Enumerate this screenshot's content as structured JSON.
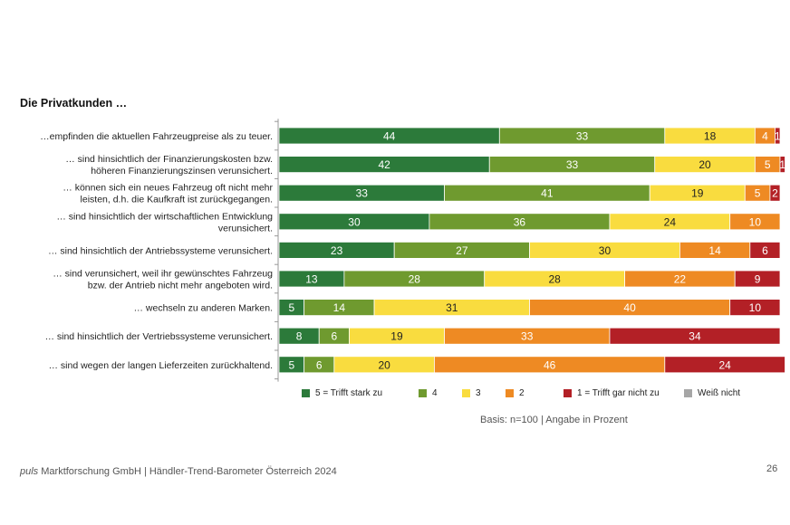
{
  "section_title": "Die Privatkunden …",
  "basis": "Basis: n=100 | Angabe in Prozent",
  "footer": {
    "brand": "puls",
    "text": " Marktforschung GmbH | Händler-Trend-Barometer Österreich 2024"
  },
  "page_number": "26",
  "colors": {
    "5": "#2c7a3a",
    "4": "#6f9a2f",
    "3": "#f9dc3f",
    "2": "#ee8a23",
    "1": "#b32026",
    "weiss_nicht": "#a6a6a6"
  },
  "chart_data": {
    "type": "bar",
    "orientation": "horizontal",
    "stacked": true,
    "xlim": [
      0,
      100
    ],
    "categories": [
      [
        "…empfinden die aktuellen Fahrzeugpreise als zu teuer."
      ],
      [
        "… sind hinsichtlich der Finanzierungskosten bzw.",
        "höheren Finanzierungszinsen verunsichert."
      ],
      [
        "… können sich ein neues Fahrzeug oft nicht mehr",
        "leisten, d.h. die Kaufkraft ist zurückgegangen."
      ],
      [
        "… sind hinsichtlich der wirtschaftlichen Entwicklung",
        "verunsichert."
      ],
      [
        "… sind hinsichtlich der Antriebssysteme verunsichert."
      ],
      [
        "… sind verunsichert, weil ihr gewünschtes Fahrzeug",
        "bzw. der Antrieb nicht mehr angeboten wird."
      ],
      [
        "… wechseln zu anderen Marken."
      ],
      [
        "… sind hinsichtlich der Vertriebssysteme verunsichert."
      ],
      [
        "… sind wegen der langen Lieferzeiten zurückhaltend."
      ]
    ],
    "series": [
      {
        "name": "5 = Trifft stark zu",
        "key": "5",
        "values": [
          44,
          42,
          33,
          30,
          23,
          13,
          5,
          8,
          5
        ]
      },
      {
        "name": "4",
        "key": "4",
        "values": [
          33,
          33,
          41,
          36,
          27,
          28,
          14,
          6,
          6
        ]
      },
      {
        "name": "3",
        "key": "3",
        "values": [
          18,
          20,
          19,
          24,
          30,
          28,
          31,
          19,
          20
        ]
      },
      {
        "name": "2",
        "key": "2",
        "values": [
          4,
          5,
          5,
          10,
          14,
          22,
          40,
          33,
          46
        ]
      },
      {
        "name": "1 = Trifft gar nicht zu",
        "key": "1",
        "values": [
          1,
          1,
          2,
          0,
          6,
          9,
          10,
          34,
          24
        ]
      },
      {
        "name": "Weiß nicht",
        "key": "weiss_nicht",
        "values": [
          0,
          0,
          0,
          0,
          0,
          0,
          0,
          0,
          0
        ]
      }
    ],
    "legend_position": "bottom",
    "grid": false
  }
}
